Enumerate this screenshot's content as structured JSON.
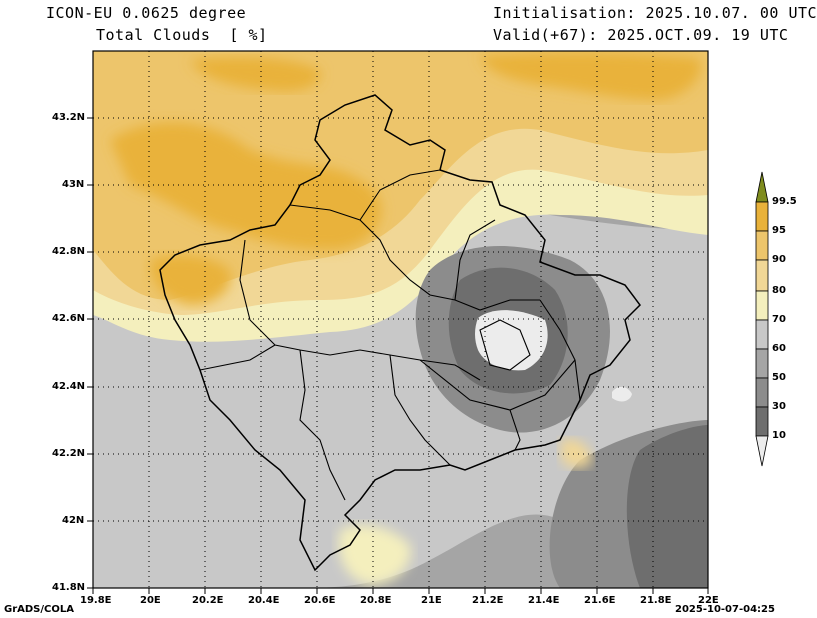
{
  "header": {
    "model": "ICON-EU 0.0625 degree",
    "field": "Total Clouds  [ %]",
    "init": "Initialisation: 2025.10.07. 00 UTC",
    "valid": "Valid(+67): 2025.OCT.09. 19 UTC"
  },
  "axes": {
    "x_ticks": [
      "19.8E",
      "20E",
      "20.2E",
      "20.4E",
      "20.6E",
      "20.8E",
      "21E",
      "21.2E",
      "21.4E",
      "21.6E",
      "21.8E",
      "22E"
    ],
    "y_ticks": [
      "43.2N",
      "43N",
      "42.8N",
      "42.6N",
      "42.4N",
      "42.2N",
      "42N",
      "41.8N"
    ]
  },
  "legend": {
    "levels": [
      "99.5",
      "95",
      "90",
      "80",
      "70",
      "60",
      "50",
      "30",
      "10"
    ],
    "colors": {
      "gt99_5": "#7f8c1e",
      "95_99_5": "#e9b23a",
      "90_95": "#edc56b",
      "80_90": "#f1d796",
      "70_80": "#f4efbd",
      "60_70": "#c8c8c8",
      "50_60": "#a5a5a5",
      "30_50": "#8c8c8c",
      "10_30": "#6e6e6e",
      "lt10": "#ececec"
    }
  },
  "footer": {
    "left": "GrADS/COLA",
    "right": "2025-10-07-04:25"
  }
}
